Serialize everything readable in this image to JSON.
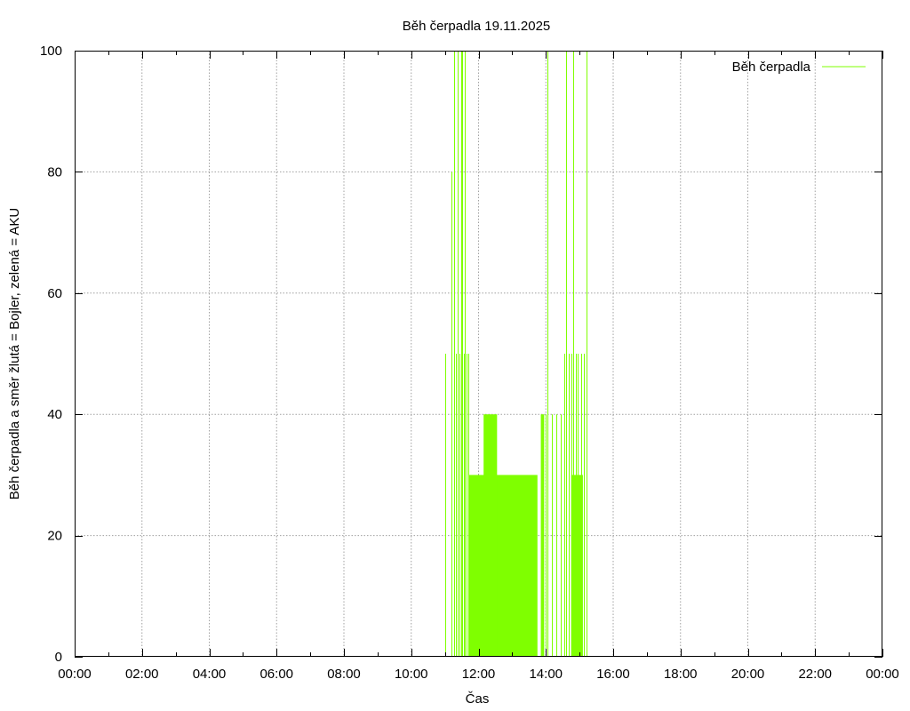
{
  "chart_data": {
    "type": "line",
    "title": "Běh čerpadla 19.11.2025",
    "xlabel": "Čas",
    "ylabel": "Běh čerpadla a směr žlutá = Bojler, zelená = AKU",
    "xlim": [
      0,
      24
    ],
    "ylim": [
      0,
      100
    ],
    "x_ticks": [
      {
        "value": 0,
        "label": "00:00"
      },
      {
        "value": 2,
        "label": "02:00"
      },
      {
        "value": 4,
        "label": "04:00"
      },
      {
        "value": 6,
        "label": "06:00"
      },
      {
        "value": 8,
        "label": "08:00"
      },
      {
        "value": 10,
        "label": "10:00"
      },
      {
        "value": 12,
        "label": "12:00"
      },
      {
        "value": 14,
        "label": "14:00"
      },
      {
        "value": 16,
        "label": "16:00"
      },
      {
        "value": 18,
        "label": "18:00"
      },
      {
        "value": 20,
        "label": "20:00"
      },
      {
        "value": 22,
        "label": "22:00"
      },
      {
        "value": 24,
        "label": "00:00"
      }
    ],
    "y_ticks": [
      {
        "value": 0,
        "label": "0"
      },
      {
        "value": 20,
        "label": "20"
      },
      {
        "value": 40,
        "label": "40"
      },
      {
        "value": 60,
        "label": "60"
      },
      {
        "value": 80,
        "label": "80"
      },
      {
        "value": 100,
        "label": "100"
      }
    ],
    "grid": true,
    "legend_position": "top-right",
    "series": [
      {
        "name": "Běh čerpadla",
        "color": "#7fff00",
        "pulses": [
          {
            "x": 11.0,
            "y": 50
          },
          {
            "x": 11.2,
            "y": 80
          },
          {
            "x": 11.28,
            "y": 100
          },
          {
            "x": 11.33,
            "y": 50
          },
          {
            "x": 11.38,
            "y": 100
          },
          {
            "x": 11.43,
            "y": 50
          },
          {
            "x": 11.48,
            "y": 100
          },
          {
            "x": 11.52,
            "y": 100
          },
          {
            "x": 11.56,
            "y": 50
          },
          {
            "x": 11.6,
            "y": 100
          },
          {
            "x": 11.65,
            "y": 50
          },
          {
            "x": 11.7,
            "y": 50
          },
          {
            "x": 14.0,
            "y": 40
          },
          {
            "x": 14.05,
            "y": 100
          },
          {
            "x": 14.18,
            "y": 40
          },
          {
            "x": 14.3,
            "y": 40
          },
          {
            "x": 14.45,
            "y": 40
          },
          {
            "x": 14.55,
            "y": 50
          },
          {
            "x": 14.6,
            "y": 100
          },
          {
            "x": 14.68,
            "y": 50
          },
          {
            "x": 14.75,
            "y": 50
          },
          {
            "x": 14.82,
            "y": 100
          },
          {
            "x": 14.88,
            "y": 50
          },
          {
            "x": 14.95,
            "y": 50
          },
          {
            "x": 15.05,
            "y": 50
          },
          {
            "x": 15.12,
            "y": 50
          },
          {
            "x": 15.2,
            "y": 100
          }
        ],
        "blocks": [
          {
            "x_start": 11.7,
            "x_end": 13.75,
            "y": 30
          },
          {
            "x_start": 12.15,
            "x_end": 12.55,
            "y": 40
          },
          {
            "x_start": 13.85,
            "x_end": 13.95,
            "y": 40
          },
          {
            "x_start": 14.75,
            "x_end": 15.1,
            "y": 30
          }
        ]
      }
    ]
  }
}
